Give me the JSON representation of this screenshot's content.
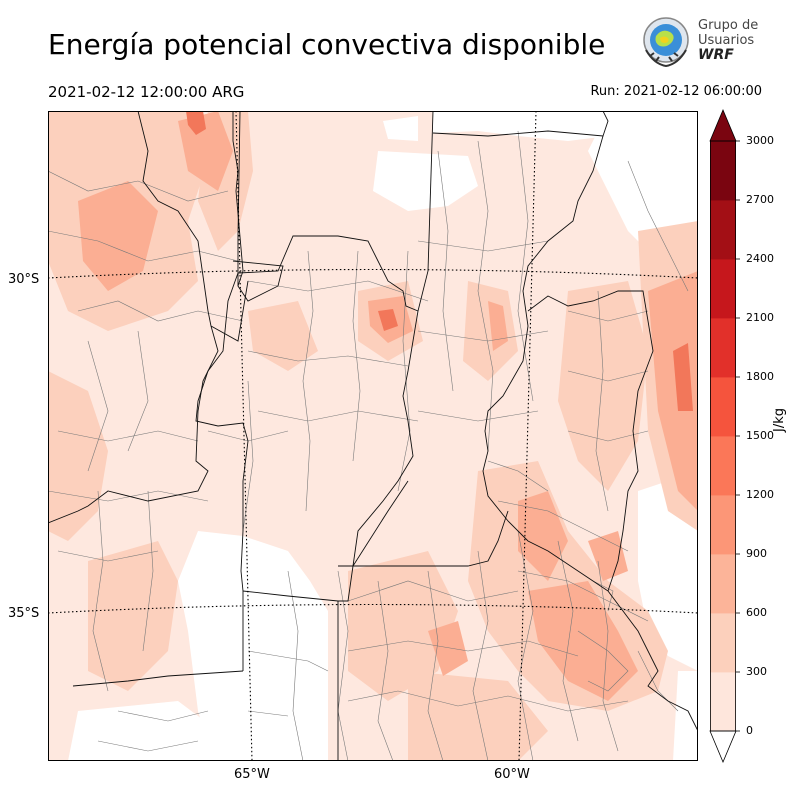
{
  "header": {
    "title": "Energía potencial convectiva disponible",
    "valid_time": "2021-02-12 12:00:00 ARG",
    "run_time": "Run: 2021-02-12 06:00:00"
  },
  "logo": {
    "line1": "Grupo de",
    "line2": "Usuarios",
    "line3": "WRF"
  },
  "map": {
    "field": "CAPE",
    "lat_labels": [
      "30°S",
      "35°S"
    ],
    "lon_labels": [
      "65°W",
      "60°W"
    ],
    "colors": {
      "land_low": "#fee8df",
      "land_mid": "#fcd0bd",
      "land_high": "#fbae93",
      "hotspot": "#f0603f",
      "border": "#111111",
      "dept": "#7a7a7a"
    }
  },
  "colorbar": {
    "unit": "J/kg",
    "ticks": [
      "0",
      "300",
      "600",
      "900",
      "1200",
      "1500",
      "1800",
      "2100",
      "2400",
      "2700",
      "3000"
    ],
    "colors": [
      "#ffffff",
      "#fee6dc",
      "#fcd0bc",
      "#fcb499",
      "#fc9677",
      "#fb7758",
      "#f5543d",
      "#e2302a",
      "#c6171c",
      "#a30f15",
      "#7a0510"
    ],
    "extend_colors": [
      "#ffffff",
      "#7a0510"
    ]
  }
}
